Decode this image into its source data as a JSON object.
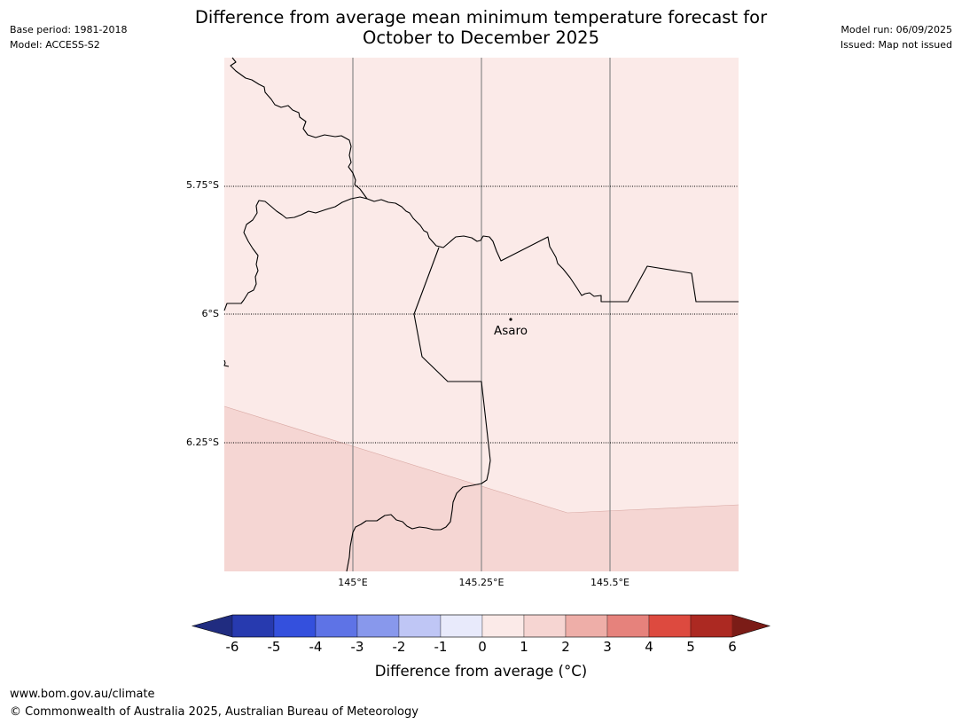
{
  "header": {
    "title_line1": "Difference from average mean minimum temperature forecast for",
    "title_line2": "October to December 2025",
    "base_period": "Base period: 1981-2018",
    "model": "Model: ACCESS-S2",
    "model_run": "Model run: 06/09/2025",
    "issued": "Issued: Map not issued"
  },
  "map": {
    "lat_labels": [
      "5.75°S",
      "6°S",
      "6.25°S"
    ],
    "lon_labels": [
      "145°E",
      "145.25°E",
      "145.5°E"
    ],
    "place": {
      "name": "Asaro"
    },
    "zones": [
      {
        "range": "0 to 1",
        "color": "#fbeae8"
      },
      {
        "range": "1 to 2",
        "color": "#f5d6d3"
      }
    ]
  },
  "colorbar": {
    "label": "Difference from average ($^\\circ$C)",
    "label_display": "Difference from average (°C)",
    "ticks": [
      "-6",
      "-5",
      "-4",
      "-3",
      "-2",
      "-1",
      "0",
      "1",
      "2",
      "3",
      "4",
      "5",
      "6"
    ],
    "colors": [
      "#202c80",
      "#273aaf",
      "#3450dd",
      "#5e73e6",
      "#8898ec",
      "#bfc6f5",
      "#e8eafb",
      "#fbeae8",
      "#f6d5d2",
      "#eeaea8",
      "#e6827c",
      "#dd4a3f",
      "#ac2922",
      "#7b1c17"
    ]
  },
  "footer": {
    "url": "www.bom.gov.au/climate",
    "copyright": "© Commonwealth of Australia 2025, Australian Bureau of Meteorology"
  }
}
